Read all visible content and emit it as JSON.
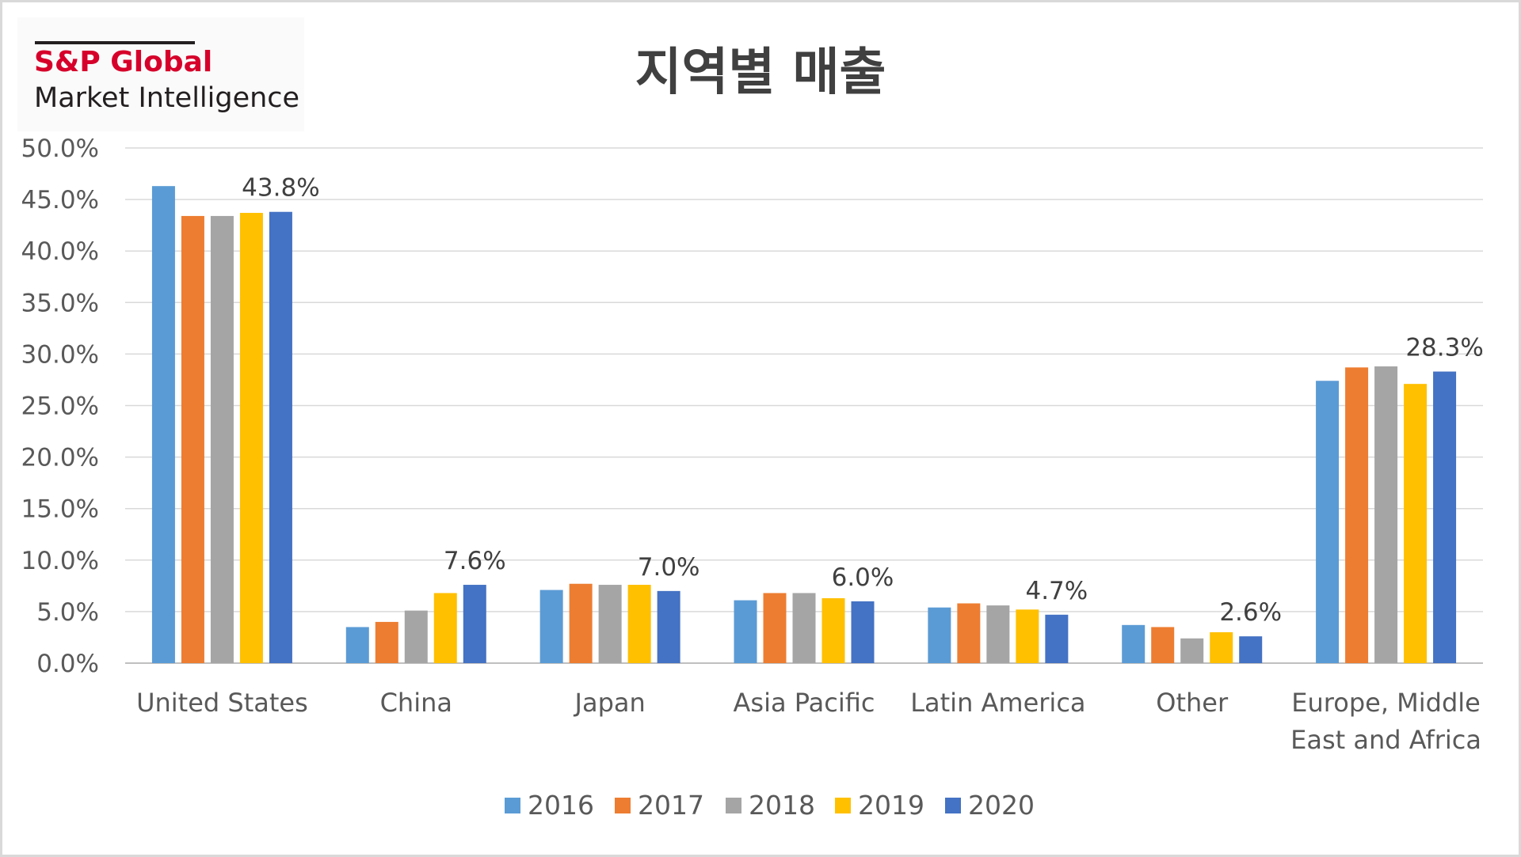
{
  "logo": {
    "brand": "S&P Global",
    "subtitle": "Market Intelligence"
  },
  "chart_data": {
    "type": "bar",
    "title": "지역별 매출",
    "xlabel": "",
    "ylabel": "",
    "ylim": [
      0,
      50
    ],
    "y_ticks": [
      "0.0%",
      "5.0%",
      "10.0%",
      "15.0%",
      "20.0%",
      "25.0%",
      "30.0%",
      "35.0%",
      "40.0%",
      "45.0%",
      "50.0%"
    ],
    "grid": true,
    "legend_position": "bottom",
    "categories": [
      "United States",
      "China",
      "Japan",
      "Asia Pacific",
      "Latin America",
      "Other",
      "Europe, Middle East and Africa"
    ],
    "category_lines": [
      [
        "United States"
      ],
      [
        "China"
      ],
      [
        "Japan"
      ],
      [
        "Asia Pacific"
      ],
      [
        "Latin America"
      ],
      [
        "Other"
      ],
      [
        "Europe, Middle",
        "East and Africa"
      ]
    ],
    "series": [
      {
        "name": "2016",
        "color": "#5b9bd5",
        "values": [
          46.3,
          3.5,
          7.1,
          6.1,
          5.4,
          3.7,
          27.4
        ]
      },
      {
        "name": "2017",
        "color": "#ed7d31",
        "values": [
          43.4,
          4.0,
          7.7,
          6.8,
          5.8,
          3.5,
          28.7
        ]
      },
      {
        "name": "2018",
        "color": "#a5a5a5",
        "values": [
          43.4,
          5.1,
          7.6,
          6.8,
          5.6,
          2.4,
          28.8
        ]
      },
      {
        "name": "2019",
        "color": "#ffc000",
        "values": [
          43.7,
          6.8,
          7.6,
          6.3,
          5.2,
          3.0,
          27.1
        ]
      },
      {
        "name": "2020",
        "color": "#4472c4",
        "values": [
          43.8,
          7.6,
          7.0,
          6.0,
          4.7,
          2.6,
          28.3
        ]
      }
    ],
    "data_labels": [
      "43.8%",
      "7.6%",
      "7.0%",
      "6.0%",
      "4.7%",
      "2.6%",
      "28.3%"
    ]
  }
}
